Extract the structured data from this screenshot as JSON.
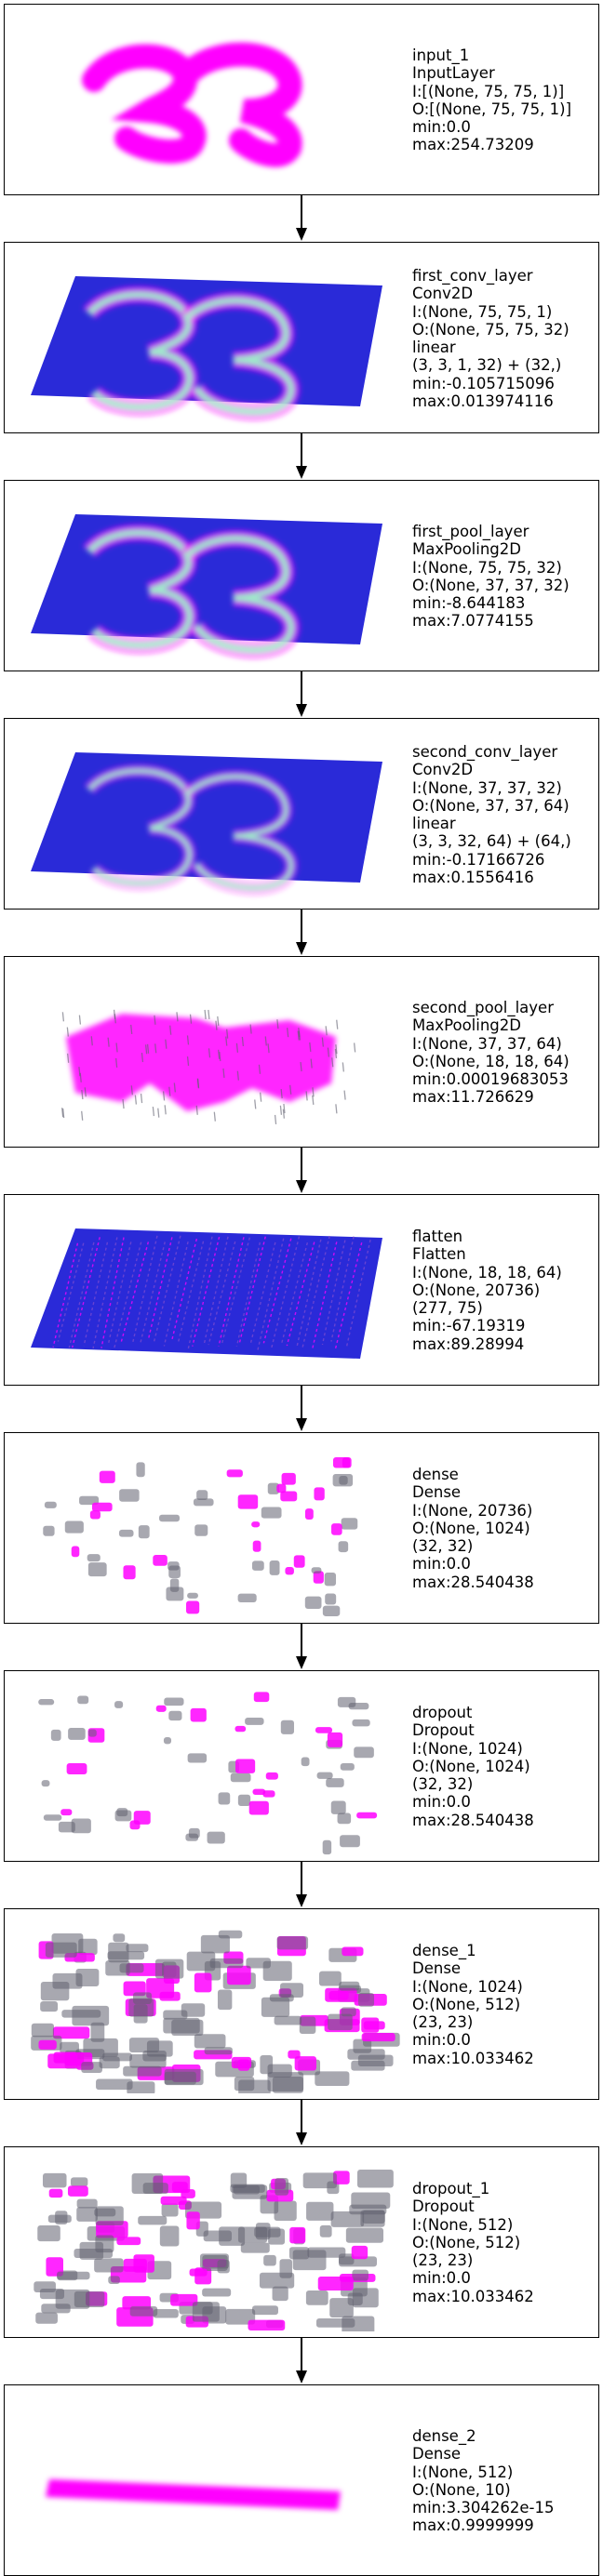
{
  "colors": {
    "highlight": "#ff00ff",
    "plate": "#2a2ad8",
    "activation": "#9effc8",
    "mark": "#606070"
  },
  "layers": [
    {
      "name": "input_1",
      "type": "InputLayer",
      "lines": [
        "I:[(None, 75, 75, 1)]",
        "O:[(None, 75, 75, 1)]",
        "min:0.0",
        "max:254.73209"
      ],
      "viz": "digit-input"
    },
    {
      "name": "first_conv_layer",
      "type": "Conv2D",
      "lines": [
        "I:(None, 75, 75, 1)",
        "O:(None, 75, 75, 32)",
        "linear",
        "(3, 3, 1, 32) + (32,)",
        "min:-0.105715096",
        "max:0.013974116"
      ],
      "viz": "plate-digit"
    },
    {
      "name": "first_pool_layer",
      "type": "MaxPooling2D",
      "lines": [
        "I:(None, 75, 75, 32)",
        "O:(None, 37, 37, 32)",
        "min:-8.644183",
        "max:7.0774155"
      ],
      "viz": "plate-digit"
    },
    {
      "name": "second_conv_layer",
      "type": "Conv2D",
      "lines": [
        "I:(None, 37, 37, 32)",
        "O:(None, 37, 37, 64)",
        "linear",
        "(3, 3, 32, 64) + (64,)",
        "min:-0.17166726",
        "max:0.1556416"
      ],
      "viz": "plate-digit-faint"
    },
    {
      "name": "second_pool_layer",
      "type": "MaxPooling2D",
      "lines": [
        "I:(None, 37, 37, 64)",
        "O:(None, 18, 18, 64)",
        "min:0.00019683053",
        "max:11.726629"
      ],
      "viz": "pool-blob"
    },
    {
      "name": "flatten",
      "type": "Flatten",
      "lines": [
        "I:(None, 18, 18, 64)",
        "O:(None, 20736)",
        "(277, 75)",
        "min:-67.19319",
        "max:89.28994"
      ],
      "viz": "plate-stripes"
    },
    {
      "name": "dense",
      "type": "Dense",
      "lines": [
        "I:(None, 20736)",
        "O:(None, 1024)",
        "(32, 32)",
        "min:0.0",
        "max:28.540438"
      ],
      "viz": "sparse"
    },
    {
      "name": "dropout",
      "type": "Dropout",
      "lines": [
        "I:(None, 1024)",
        "O:(None, 1024)",
        "(32, 32)",
        "min:0.0",
        "max:28.540438"
      ],
      "viz": "sparse"
    },
    {
      "name": "dense_1",
      "type": "Dense",
      "lines": [
        "I:(None, 1024)",
        "O:(None, 512)",
        "(23, 23)",
        "min:0.0",
        "max:10.033462"
      ],
      "viz": "dense-scatter"
    },
    {
      "name": "dropout_1",
      "type": "Dropout",
      "lines": [
        "I:(None, 512)",
        "O:(None, 512)",
        "(23, 23)",
        "min:0.0",
        "max:10.033462"
      ],
      "viz": "dense-scatter"
    },
    {
      "name": "dense_2",
      "type": "Dense",
      "lines": [
        "I:(None, 512)",
        "O:(None, 10)",
        "min:3.304262e-15",
        "max:0.9999999"
      ],
      "viz": "bar"
    }
  ]
}
